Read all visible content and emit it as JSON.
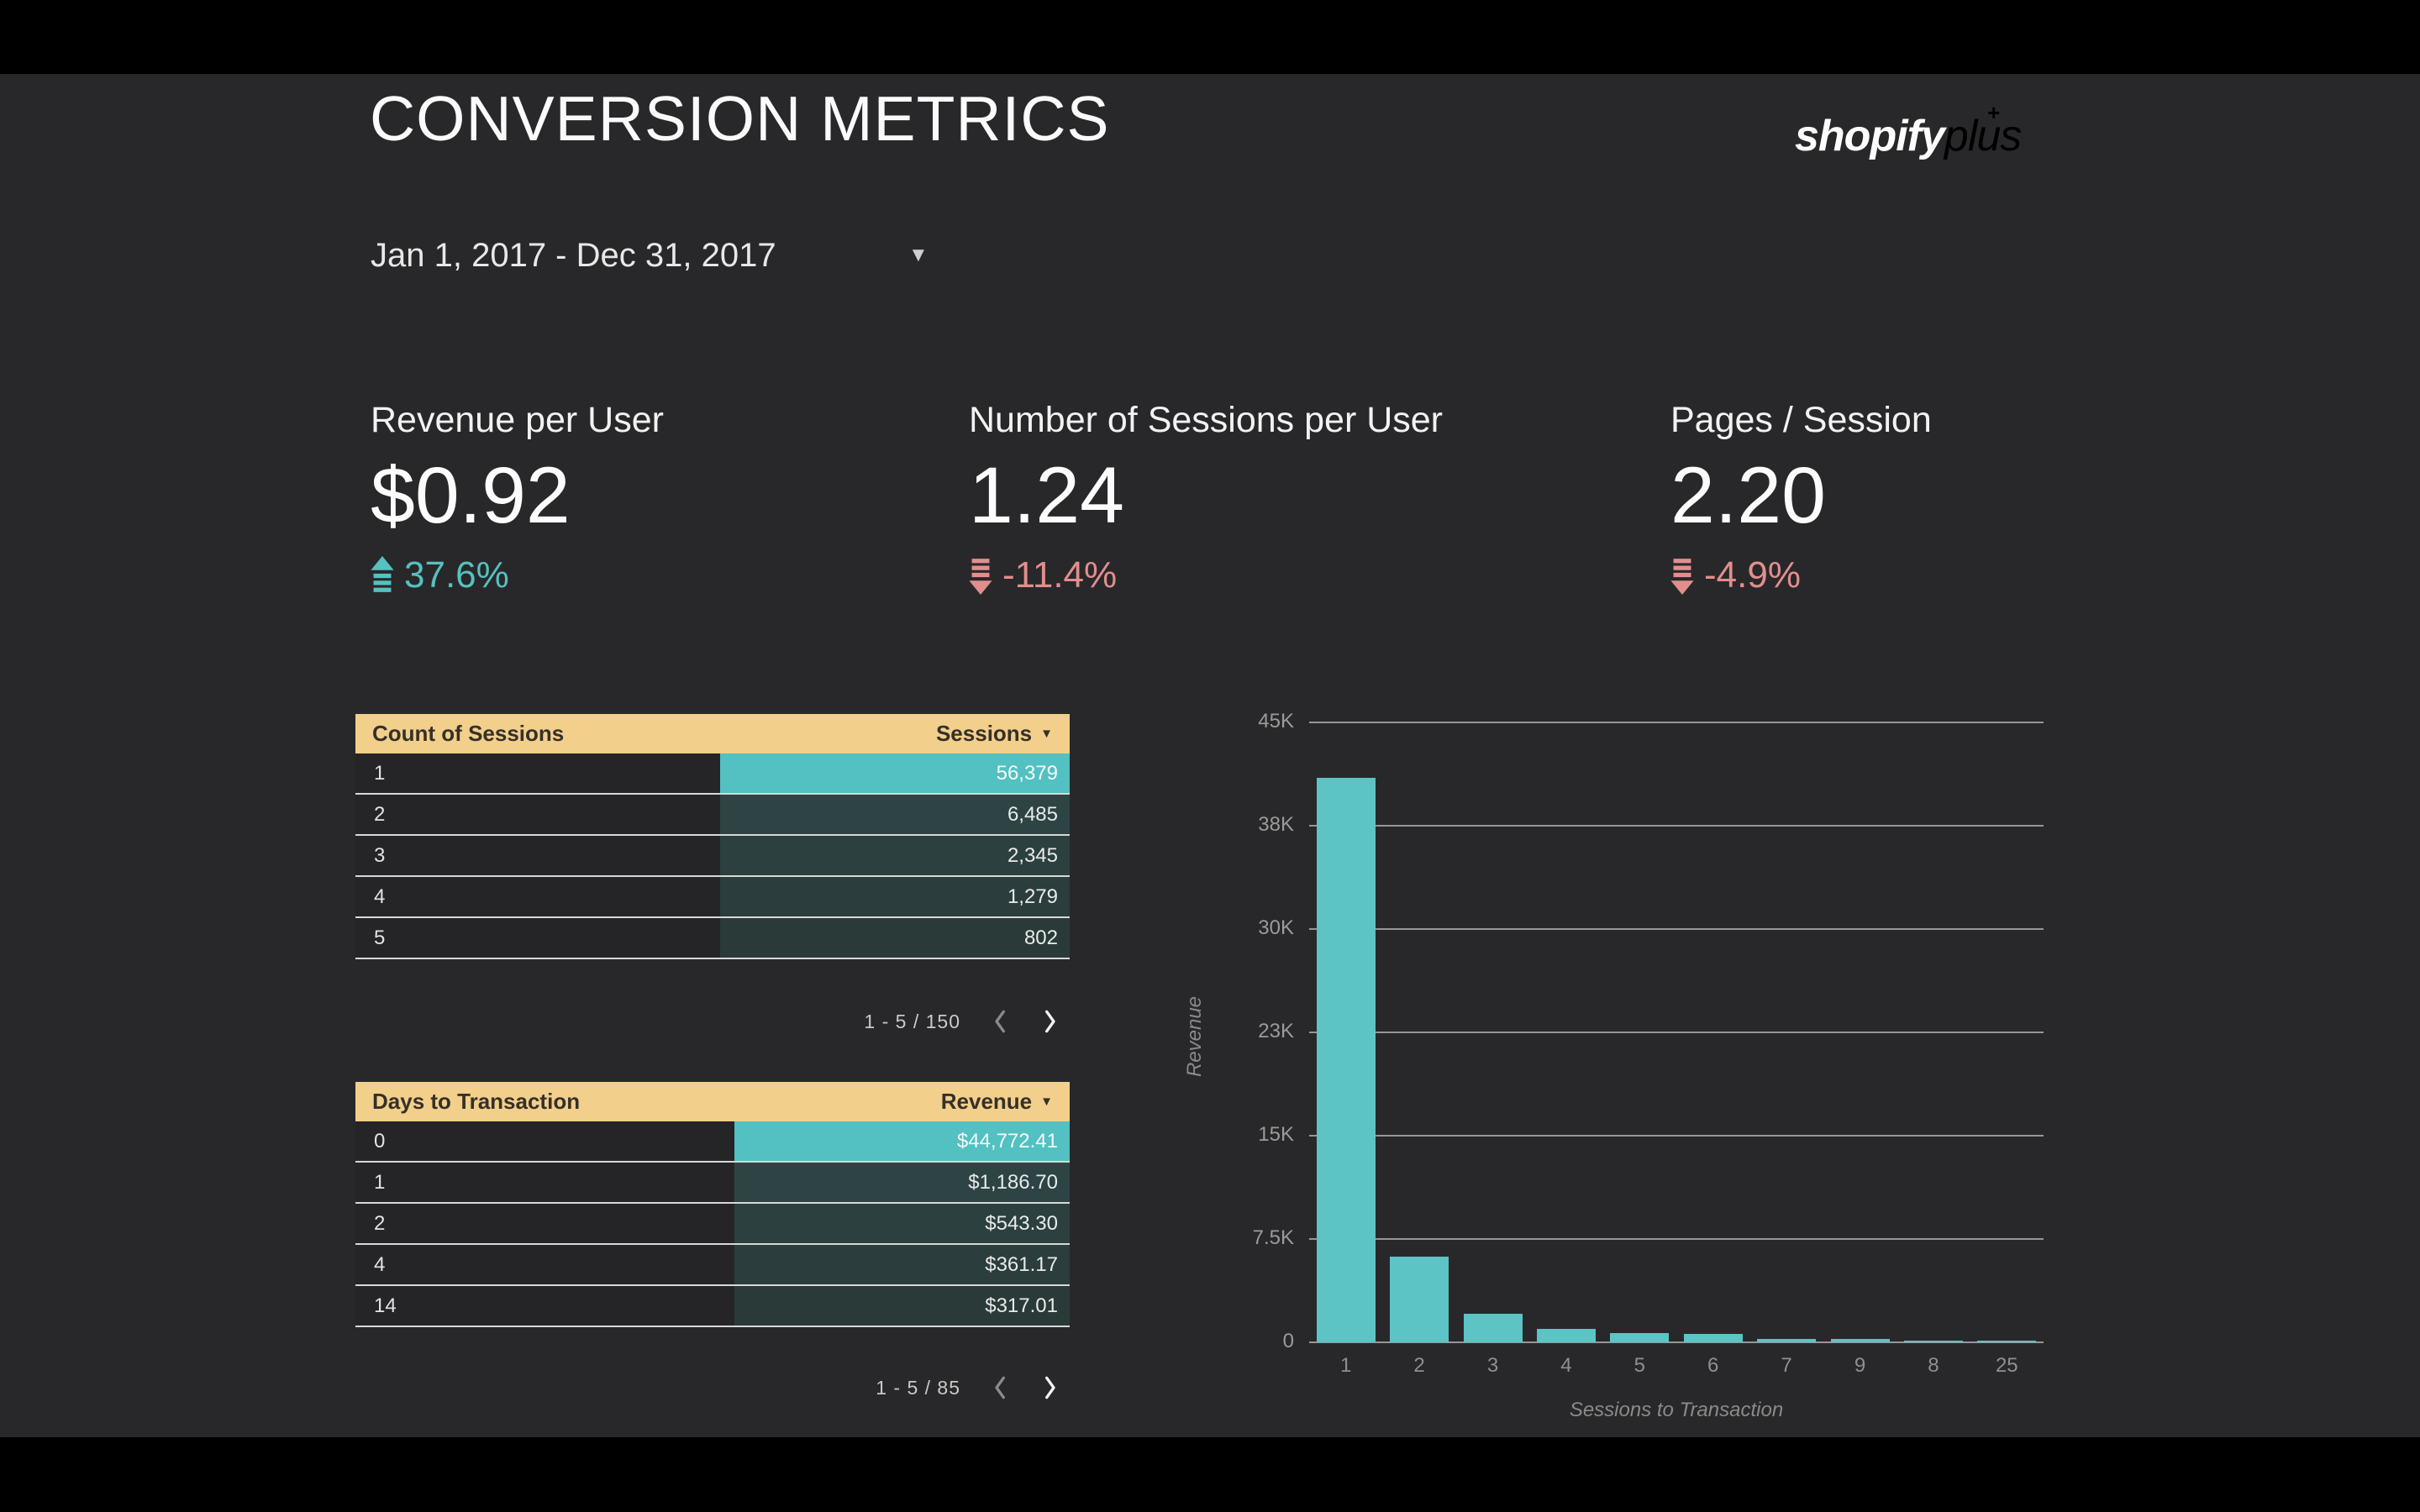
{
  "page": {
    "background": "#28282a",
    "frame": "#000000"
  },
  "header": {
    "title": "CONVERSION METRICS",
    "logo": {
      "bold": "shopify",
      "light": "plus",
      "sparkle": "+",
      "gold": "#c9a23f"
    }
  },
  "date_range": {
    "label": "Jan 1, 2017 - Dec 31, 2017",
    "caret": "▼"
  },
  "scorecards": [
    {
      "label": "Revenue per User",
      "value": "$0.92",
      "delta": "37.6%",
      "direction": "up",
      "delta_color": "#56c1c1"
    },
    {
      "label": "Number of Sessions per User",
      "value": "1.24",
      "delta": "-11.4%",
      "direction": "down",
      "delta_color": "#e28e8e"
    },
    {
      "label": "Pages / Session",
      "value": "2.20",
      "delta": "-4.9%",
      "direction": "down",
      "delta_color": "#e28e8e"
    }
  ],
  "tables": [
    {
      "dimension_header": "Count of Sessions",
      "metric_header": "Sessions",
      "sort_caret": "▼",
      "value_col_start_pct": 51,
      "rows": [
        {
          "dim": "1",
          "val": "56,379",
          "heat": "#53c0c1",
          "val_color": "#f2fbfb"
        },
        {
          "dim": "2",
          "val": "6,485",
          "heat": "#2e4444",
          "val_color": "#e8eaea"
        },
        {
          "dim": "3",
          "val": "2,345",
          "heat": "#2c403f",
          "val_color": "#e8eaea"
        },
        {
          "dim": "4",
          "val": "1,279",
          "heat": "#2b3d3c",
          "val_color": "#e8eaea"
        },
        {
          "dim": "5",
          "val": "802",
          "heat": "#2a3a39",
          "val_color": "#e8eaea"
        }
      ],
      "pagination": {
        "label": "1 - 5 / 150",
        "prev_enabled": false,
        "next_enabled": true
      }
    },
    {
      "dimension_header": "Days to Transaction",
      "metric_header": "Revenue",
      "sort_caret": "▼",
      "value_col_start_pct": 53,
      "rows": [
        {
          "dim": "0",
          "val": "$44,772.41",
          "heat": "#53c0c1",
          "val_color": "#f2fbfb"
        },
        {
          "dim": "1",
          "val": "$1,186.70",
          "heat": "#2e4444",
          "val_color": "#e8eaea"
        },
        {
          "dim": "2",
          "val": "$543.30",
          "heat": "#2c403f",
          "val_color": "#e8eaea"
        },
        {
          "dim": "4",
          "val": "$361.17",
          "heat": "#2b3d3c",
          "val_color": "#e8eaea"
        },
        {
          "dim": "14",
          "val": "$317.01",
          "heat": "#2a3a39",
          "val_color": "#e8eaea"
        }
      ],
      "pagination": {
        "label": "1 - 5 / 85",
        "prev_enabled": false,
        "next_enabled": true
      }
    }
  ],
  "chart_data": {
    "type": "bar",
    "title": "",
    "xlabel": "Sessions to Transaction",
    "ylabel": "Revenue",
    "categories": [
      "1",
      "2",
      "3",
      "4",
      "5",
      "6",
      "7",
      "9",
      "8",
      "25"
    ],
    "values": [
      41000,
      6200,
      2050,
      980,
      680,
      620,
      250,
      240,
      90,
      60
    ],
    "ylim": [
      0,
      45000
    ],
    "yticks": [
      {
        "value": 45000,
        "label": "45K"
      },
      {
        "value": 37500,
        "label": "38K"
      },
      {
        "value": 30000,
        "label": "30K"
      },
      {
        "value": 22500,
        "label": "23K"
      },
      {
        "value": 15000,
        "label": "15K"
      },
      {
        "value": 7500,
        "label": "7.5K"
      },
      {
        "value": 0,
        "label": "0"
      }
    ],
    "bar_color": "#5cc4c4",
    "grid": "horizontal",
    "legend": "none"
  }
}
